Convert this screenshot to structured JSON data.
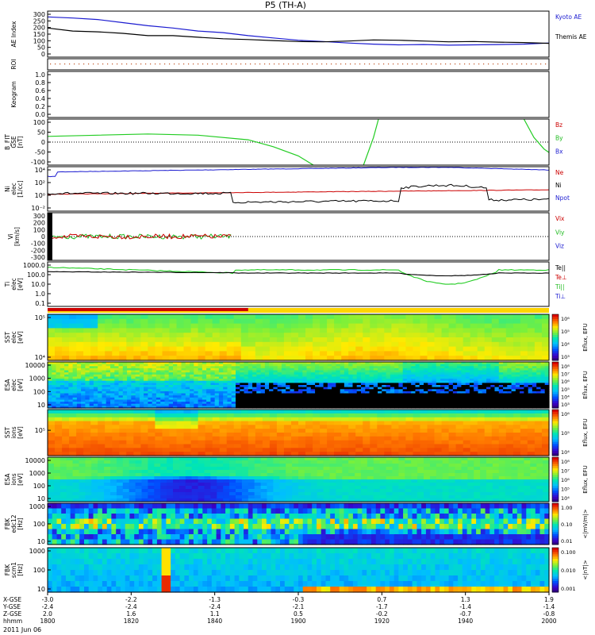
{
  "chart_data": {
    "type": "line",
    "title": "P5 (TH-A)",
    "date_label": "2011 Jun 06",
    "x_rows": [
      {
        "label": "X-GSE",
        "values": [
          "-3.0",
          "-2.2",
          "-1.3",
          "-0.3",
          "0.7",
          "1.3",
          "1.9"
        ]
      },
      {
        "label": "Y-GSE",
        "values": [
          "-2.4",
          "-2.4",
          "-2.4",
          "-2.1",
          "-1.7",
          "-1.4",
          "-1.4"
        ]
      },
      {
        "label": "Z-GSE",
        "values": [
          "2.0",
          "1.6",
          "1.1",
          "0.5",
          "-0.2",
          "-0.7",
          "-0.8"
        ]
      },
      {
        "label": "hhmm",
        "values": [
          "1800",
          "1820",
          "1840",
          "1900",
          "1920",
          "1940",
          "2000"
        ]
      }
    ],
    "panels": [
      {
        "id": "ae",
        "ylabel": [
          "AE Index"
        ],
        "yticks": [
          "300",
          "250",
          "200",
          "150",
          "100",
          "50",
          "0"
        ],
        "legend": [
          "Kyoto AE",
          "Themis AE"
        ],
        "legend_colors": [
          "#1b1bd0",
          "#000000"
        ],
        "series": [
          {
            "name": "Kyoto AE",
            "color": "#1b1bd0",
            "x": [
              0,
              0.05,
              0.1,
              0.15,
              0.2,
              0.25,
              0.3,
              0.35,
              0.4,
              0.45,
              0.5,
              0.55,
              0.6,
              0.65,
              0.7,
              0.75,
              0.8,
              0.85,
              0.9,
              0.95,
              1
            ],
            "y": [
              262,
              255,
              245,
              225,
              205,
              190,
              170,
              160,
              140,
              125,
              110,
              102,
              92,
              85,
              80,
              82,
              78,
              80,
              82,
              85,
              92
            ]
          },
          {
            "name": "Themis AE",
            "color": "#000000",
            "x": [
              0,
              0.05,
              0.1,
              0.15,
              0.2,
              0.25,
              0.3,
              0.35,
              0.4,
              0.45,
              0.5,
              0.55,
              0.6,
              0.65,
              0.7,
              0.75,
              0.8,
              0.85,
              0.9,
              0.95,
              1
            ],
            "y": [
              190,
              170,
              165,
              155,
              140,
              140,
              130,
              120,
              115,
              108,
              102,
              100,
              105,
              112,
              110,
              105,
              100,
              102,
              98,
              95,
              90
            ]
          }
        ],
        "ylim": [
          0,
          300
        ]
      },
      {
        "id": "roi",
        "ylabel": [
          "ROI"
        ],
        "yticks": []
      },
      {
        "id": "keogram",
        "ylabel": [
          "Keogram"
        ],
        "yticks": [
          "1.0",
          "0.8",
          "0.6",
          "0.4",
          "0.2",
          "0.0"
        ]
      },
      {
        "id": "bfit",
        "ylabel": [
          "B_FIT",
          "GSE",
          "[nT]"
        ],
        "yticks": [
          "100",
          "50",
          "0",
          "-50",
          "-100"
        ],
        "legend": [
          "Bz",
          "By",
          "Bx"
        ],
        "legend_colors": [
          "#cc0000",
          "#22bb22",
          "#1b1bd0"
        ],
        "series": [
          {
            "name": "By",
            "color": "#22cc22",
            "x": [
              0,
              0.1,
              0.2,
              0.3,
              0.4,
              0.45,
              0.5,
              0.53
            ],
            "y": [
              25,
              30,
              35,
              30,
              10,
              -20,
              -60,
              -100
            ]
          },
          {
            "name": "By",
            "color": "#22cc22",
            "x": [
              0.63,
              0.65,
              0.66
            ],
            "y": [
              -100,
              20,
              100
            ]
          },
          {
            "name": "By",
            "color": "#22cc22",
            "x": [
              0.95,
              0.97,
              0.99,
              1
            ],
            "y": [
              100,
              20,
              -30,
              -45
            ]
          }
        ],
        "ylim": [
          -100,
          100
        ]
      },
      {
        "id": "ni",
        "ylabel": [
          "Ni",
          "elec",
          "[1/cc]"
        ],
        "yticks": [
          "10⁴",
          "10²",
          "10⁰",
          "10⁻²"
        ],
        "legend": [
          "Ne",
          "Ni",
          "Npot"
        ],
        "legend_colors": [
          "#cc0000",
          "#000000",
          "#1b1bd0"
        ]
      },
      {
        "id": "vi",
        "ylabel": [
          "Vi",
          "[km/s]"
        ],
        "yticks": [
          "300",
          "200",
          "100",
          "0",
          "-100",
          "-200",
          "-300"
        ],
        "legend": [
          "Vix",
          "Viy",
          "Viz"
        ],
        "legend_colors": [
          "#cc0000",
          "#22bb22",
          "#1b1bd0"
        ],
        "ylim": [
          -300,
          300
        ]
      },
      {
        "id": "ti",
        "ylabel": [
          "Ti",
          "elec",
          "[eV]"
        ],
        "yticks": [
          "1000.0",
          "100.0",
          "10.0",
          "1.0",
          "0.1"
        ],
        "legend": [
          "Te||",
          "Te⊥",
          "Ti||",
          "Ti⊥"
        ],
        "legend_colors": [
          "#000000",
          "#cc0000",
          "#22bb22",
          "#1b1bd0"
        ]
      },
      {
        "id": "sst_e",
        "ylabel": [
          "SST",
          "elec",
          "[eV]"
        ],
        "yticks": [
          "10⁵",
          "10⁴"
        ],
        "cbar": [
          "10⁶",
          "10⁵",
          "10⁴",
          "10³"
        ],
        "cbar_label": "Eflux, EFU"
      },
      {
        "id": "esa_e",
        "ylabel": [
          "ESA",
          "elec",
          "[eV]"
        ],
        "yticks": [
          "10000",
          "1000",
          "100",
          "10"
        ],
        "cbar": [
          "10⁸",
          "10⁷",
          "10⁶",
          "10⁵",
          "10⁴",
          "10³"
        ],
        "cbar_label": "Eflux, EFU"
      },
      {
        "id": "sst_i",
        "ylabel": [
          "SST",
          "ions",
          "[eV]"
        ],
        "yticks": [
          "10⁵"
        ],
        "cbar": [
          "10⁶",
          "10⁵",
          "10⁴"
        ],
        "cbar_label": "Eflux, EFU"
      },
      {
        "id": "esa_i",
        "ylabel": [
          "ESA",
          "ions",
          "[eV]"
        ],
        "yticks": [
          "10000",
          "1000",
          "100",
          "10"
        ],
        "cbar": [
          "10⁸",
          "10⁷",
          "10⁶",
          "10⁵",
          "10⁴"
        ],
        "cbar_label": "Eflux, EFU"
      },
      {
        "id": "fbk_e",
        "ylabel": [
          "FBK",
          "edc12",
          "[Hz]"
        ],
        "yticks": [
          "1000",
          "100",
          "10"
        ],
        "cbar": [
          "1.00",
          "0.10",
          "0.01"
        ],
        "cbar_label": "<|mV/m|>"
      },
      {
        "id": "fbk_b",
        "ylabel": [
          "FBK",
          "scm1",
          "[Hz]"
        ],
        "yticks": [
          "1000",
          "100",
          "10"
        ],
        "cbar": [
          "0.100",
          "0.010",
          "0.001"
        ],
        "cbar_label": "<|nT|>"
      }
    ],
    "grid": false
  }
}
